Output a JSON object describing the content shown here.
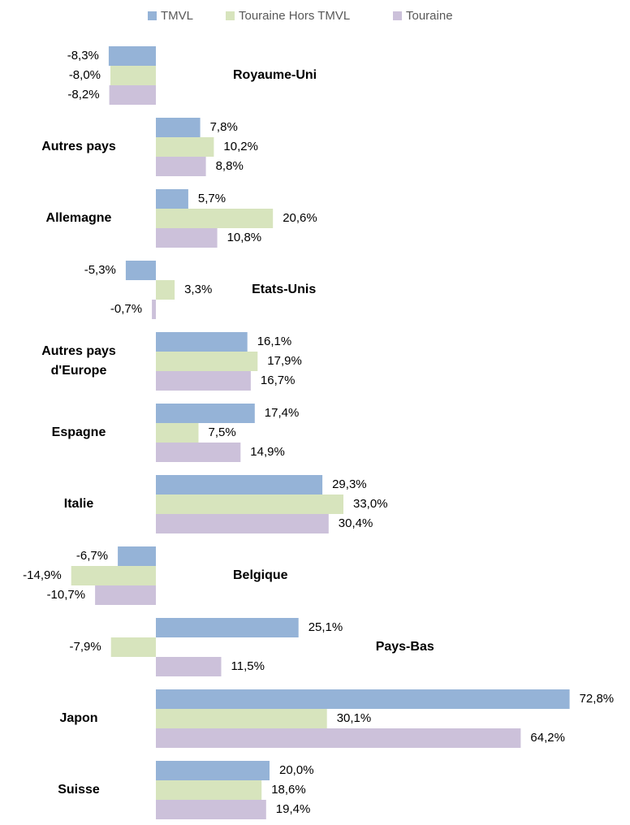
{
  "chart_data": {
    "type": "bar",
    "orientation": "horizontal",
    "categories": [
      "Royaume-Uni",
      "Autres pays",
      "Allemagne",
      "Etats-Unis",
      "Autres pays d'Europe",
      "Espagne",
      "Italie",
      "Belgique",
      "Pays-Bas",
      "Japon",
      "Suisse"
    ],
    "series": [
      {
        "name": "TMVL",
        "color": "#95b3d7",
        "values": [
          -8.3,
          7.8,
          5.7,
          -5.3,
          16.1,
          17.4,
          29.3,
          -6.7,
          25.1,
          72.8,
          20.0
        ],
        "value_labels": [
          "-8,3%",
          "7,8%",
          "5,7%",
          "-5,3%",
          "16,1%",
          "17,4%",
          "29,3%",
          "-6,7%",
          "25,1%",
          "72,8%",
          "20,0%"
        ]
      },
      {
        "name": "Touraine Hors TMVL",
        "color": "#d7e4bd",
        "values": [
          -8.0,
          10.2,
          20.6,
          3.3,
          17.9,
          7.5,
          33.0,
          -14.9,
          -7.9,
          30.1,
          18.6
        ],
        "value_labels": [
          "-8,0%",
          "10,2%",
          "20,6%",
          "3,3%",
          "17,9%",
          "7,5%",
          "33,0%",
          "-14,9%",
          "-7,9%",
          "30,1%",
          "18,6%"
        ]
      },
      {
        "name": "Touraine",
        "color": "#ccc1da",
        "values": [
          -8.2,
          8.8,
          10.8,
          -0.7,
          16.7,
          14.9,
          30.4,
          -10.7,
          11.5,
          64.2,
          19.4
        ],
        "value_labels": [
          "-8,2%",
          "8,8%",
          "10,8%",
          "-0,7%",
          "16,7%",
          "14,9%",
          "30,4%",
          "-10,7%",
          "11,5%",
          "64,2%",
          "19,4%"
        ]
      }
    ],
    "xlim": [
      -20,
      80
    ],
    "legend": "top"
  }
}
